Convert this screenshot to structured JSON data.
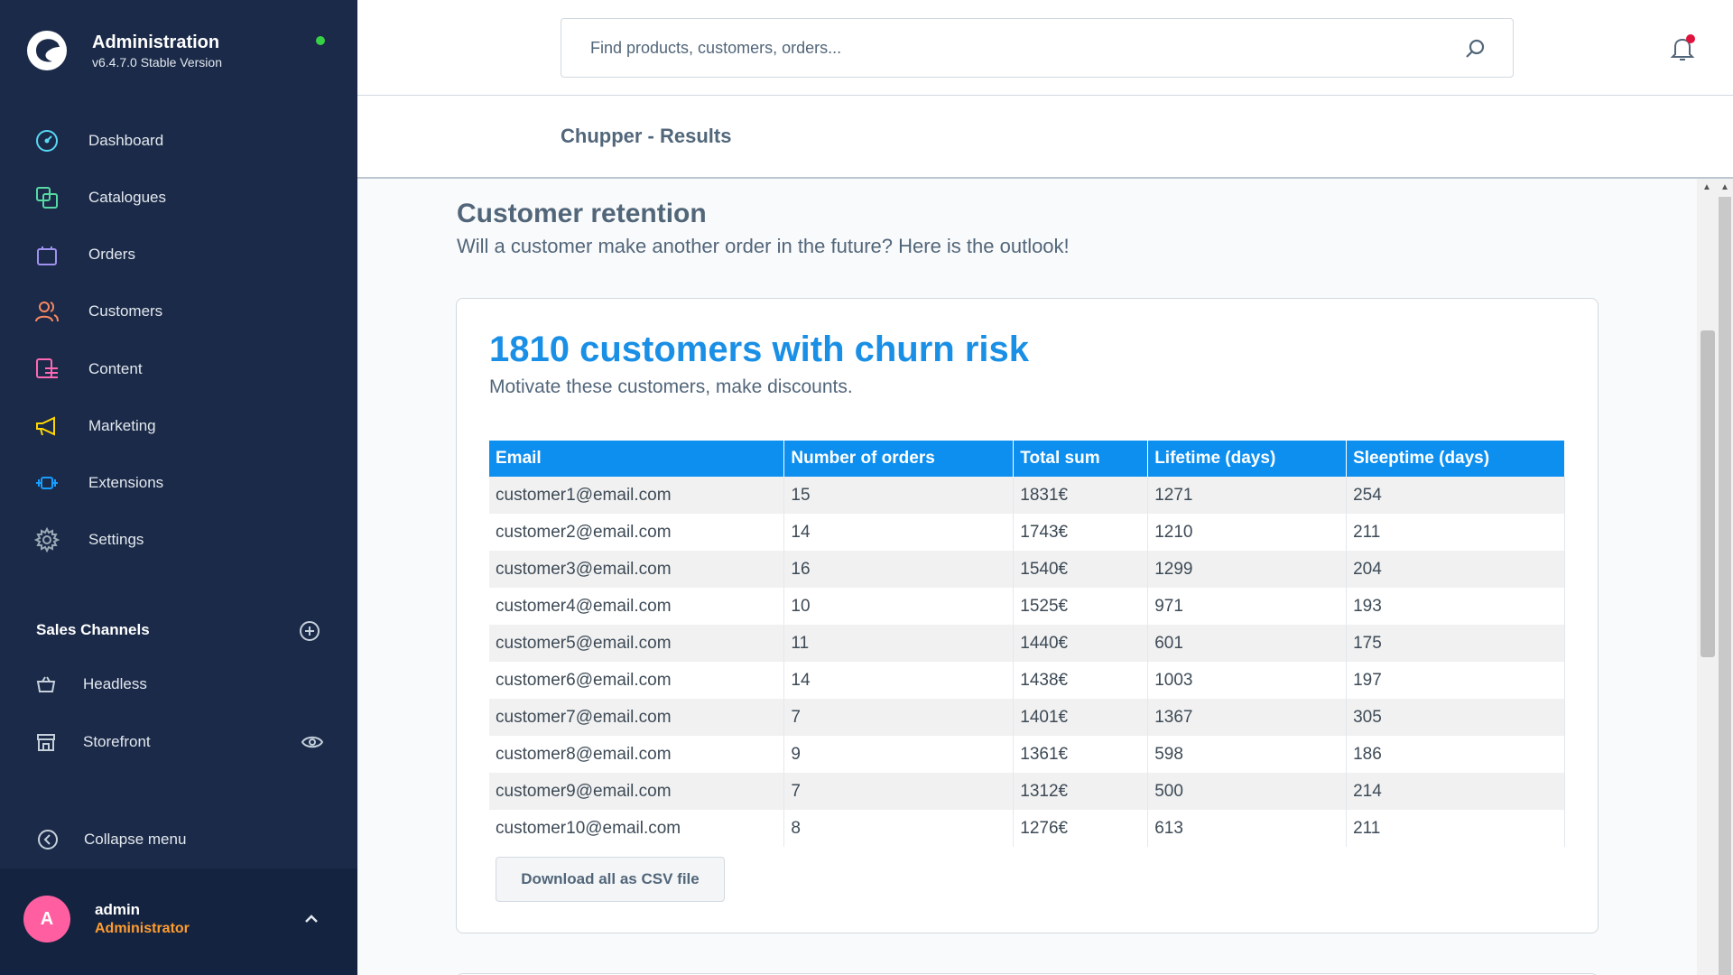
{
  "app": {
    "title": "Administration",
    "version": "v6.4.7.0 Stable Version"
  },
  "nav": {
    "items": [
      {
        "label": "Dashboard",
        "icon": "dashboard-icon",
        "color": "#57d9f5"
      },
      {
        "label": "Catalogues",
        "icon": "catalogues-icon",
        "color": "#57d9a3"
      },
      {
        "label": "Orders",
        "icon": "orders-icon",
        "color": "#a092f0"
      },
      {
        "label": "Customers",
        "icon": "customers-icon",
        "color": "#f88962"
      },
      {
        "label": "Content",
        "icon": "content-icon",
        "color": "#ff68b4"
      },
      {
        "label": "Marketing",
        "icon": "marketing-icon",
        "color": "#ffd700"
      },
      {
        "label": "Extensions",
        "icon": "extensions-icon",
        "color": "#189eff"
      },
      {
        "label": "Settings",
        "icon": "settings-icon",
        "color": "#9aa8b5"
      }
    ]
  },
  "sales_channels": {
    "title": "Sales Channels",
    "items": [
      {
        "label": "Headless",
        "icon": "basket-icon"
      },
      {
        "label": "Storefront",
        "icon": "storefront-icon"
      }
    ]
  },
  "collapse_label": "Collapse menu",
  "user": {
    "initial": "A",
    "name": "admin",
    "role": "Administrator"
  },
  "search": {
    "placeholder": "Find products, customers, orders..."
  },
  "page": {
    "title": "Chupper - Results"
  },
  "retention": {
    "heading": "Customer retention",
    "subheading": "Will a customer make another order in the future? Here is the outlook!"
  },
  "churn": {
    "title": "1810 customers with churn risk",
    "subtitle": "Motivate these customers, make discounts.",
    "columns": [
      "Email",
      "Number of orders",
      "Total sum",
      "Lifetime (days)",
      "Sleeptime (days)"
    ],
    "rows": [
      [
        "customer1@email.com",
        "15",
        "1831€",
        "1271",
        "254"
      ],
      [
        "customer2@email.com",
        "14",
        "1743€",
        "1210",
        "211"
      ],
      [
        "customer3@email.com",
        "16",
        "1540€",
        "1299",
        "204"
      ],
      [
        "customer4@email.com",
        "10",
        "1525€",
        "971",
        "193"
      ],
      [
        "customer5@email.com",
        "11",
        "1440€",
        "601",
        "175"
      ],
      [
        "customer6@email.com",
        "14",
        "1438€",
        "1003",
        "197"
      ],
      [
        "customer7@email.com",
        "7",
        "1401€",
        "1367",
        "305"
      ],
      [
        "customer8@email.com",
        "9",
        "1361€",
        "598",
        "186"
      ],
      [
        "customer9@email.com",
        "7",
        "1312€",
        "500",
        "214"
      ],
      [
        "customer10@email.com",
        "8",
        "1276€",
        "613",
        "211"
      ]
    ],
    "download_label": "Download all as CSV file"
  },
  "colors": {
    "sidebar": "#1b2a48",
    "accent": "#1a8fe6",
    "table_header": "#0d8ff0",
    "status_online": "#37d046",
    "notification": "#e0133c",
    "avatar": "#ff5fa0",
    "role": "#ff9c2f"
  }
}
